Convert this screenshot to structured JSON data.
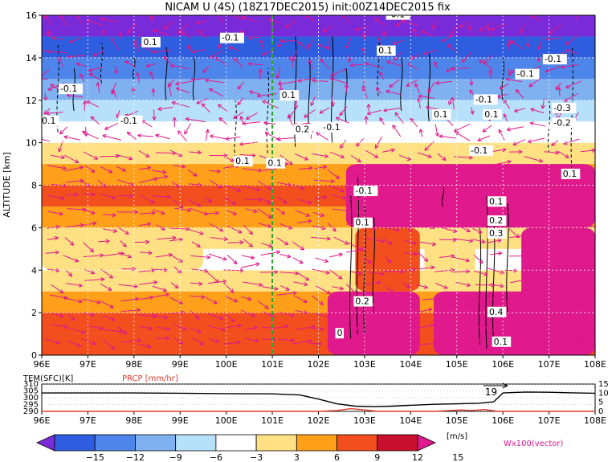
{
  "title": "NICAM U (4S) (18Z17DEC2015) init:00Z14DEC2015 fix",
  "colors": {
    "axis": "#000000",
    "vector": "#e0198c",
    "marker_line": "#2ca02c",
    "temp_line": "#000000",
    "prcp_line": "#e03a2a",
    "prcp_label": "#e03a2a"
  },
  "chart_data": [
    {
      "type": "heatmap",
      "name": "main-section",
      "ylabel": "ALTITUDE [km]",
      "xlim": [
        96,
        108
      ],
      "ylim": [
        0,
        16
      ],
      "x_ticks": [
        "96E",
        "97E",
        "98E",
        "99E",
        "100E",
        "101E",
        "102E",
        "103E",
        "104E",
        "105E",
        "106E",
        "107E",
        "108E"
      ],
      "y_ticks": [
        "0",
        "2",
        "4",
        "6",
        "8",
        "10",
        "12",
        "14",
        "16"
      ],
      "marker_longitude": 101,
      "layers": [
        {
          "z0": 0,
          "z1": 1,
          "u": 9
        },
        {
          "z0": 1,
          "z1": 2,
          "u": 10
        },
        {
          "z0": 2,
          "z1": 3,
          "u": 8
        },
        {
          "z0": 3,
          "z1": 4,
          "u": 5
        },
        {
          "z0": 4,
          "z1": 5,
          "u": 2
        },
        {
          "z0": 5,
          "z1": 6,
          "u": 4
        },
        {
          "z0": 6,
          "z1": 7,
          "u": 8
        },
        {
          "z0": 7,
          "z1": 8,
          "u": 10
        },
        {
          "z0": 8,
          "z1": 9,
          "u": 8
        },
        {
          "z0": 9,
          "z1": 10,
          "u": 5
        },
        {
          "z0": 10,
          "z1": 11,
          "u": 1
        },
        {
          "z0": 11,
          "z1": 12,
          "u": -4
        },
        {
          "z0": 12,
          "z1": 13,
          "u": -7
        },
        {
          "z0": 13,
          "z1": 14,
          "u": -10
        },
        {
          "z0": 14,
          "z1": 15,
          "u": -14
        },
        {
          "z0": 15,
          "z1": 16,
          "u": -16
        }
      ],
      "patches": [
        {
          "x0": 102.2,
          "x1": 104.2,
          "z0": 0,
          "z1": 3,
          "u": 15
        },
        {
          "x0": 102.6,
          "x1": 108,
          "z0": 6,
          "z1": 9,
          "u": 15
        },
        {
          "x0": 104.5,
          "x1": 108,
          "z0": 0,
          "z1": 3,
          "u": 15
        },
        {
          "x0": 106.4,
          "x1": 108,
          "z0": 2,
          "z1": 6,
          "u": 15
        },
        {
          "x0": 96,
          "x1": 99.5,
          "z0": 4,
          "z1": 5.5,
          "u": 5
        },
        {
          "x0": 104.3,
          "x1": 105.4,
          "z0": 3.5,
          "z1": 5.5,
          "u": 4
        },
        {
          "x0": 102.8,
          "x1": 104.2,
          "z0": 3,
          "z1": 6,
          "u": 10
        }
      ],
      "contour_labels": [
        {
          "x": 98.2,
          "z": 14.6,
          "text": "0.1"
        },
        {
          "x": 99.9,
          "z": 14.8,
          "text": "-0.1"
        },
        {
          "x": 103.5,
          "z": 15.9,
          "text": "-0.1"
        },
        {
          "x": 103.3,
          "z": 14.2,
          "text": "0.1"
        },
        {
          "x": 106.9,
          "z": 13.8,
          "text": "-0.1"
        },
        {
          "x": 106.3,
          "z": 13.1,
          "text": "-0.1"
        },
        {
          "x": 96.4,
          "z": 12.4,
          "text": "-0.1"
        },
        {
          "x": 101.2,
          "z": 12.1,
          "text": "0.1"
        },
        {
          "x": 105.4,
          "z": 11.9,
          "text": "-0.1"
        },
        {
          "x": 96.0,
          "z": 10.9,
          "text": "0.1"
        },
        {
          "x": 97.7,
          "z": 10.9,
          "text": "-0.1"
        },
        {
          "x": 101.5,
          "z": 10.5,
          "text": "0.2"
        },
        {
          "x": 102.1,
          "z": 10.6,
          "text": "-0.1"
        },
        {
          "x": 104.5,
          "z": 11.2,
          "text": "0.1"
        },
        {
          "x": 105.6,
          "z": 11.2,
          "text": "0.1"
        },
        {
          "x": 107.1,
          "z": 11.5,
          "text": "-0.3"
        },
        {
          "x": 107.1,
          "z": 10.8,
          "text": "-0.2"
        },
        {
          "x": 105.3,
          "z": 9.5,
          "text": "-0.1"
        },
        {
          "x": 100.2,
          "z": 9.0,
          "text": "0.1"
        },
        {
          "x": 100.9,
          "z": 8.9,
          "text": "0.1"
        },
        {
          "x": 107.3,
          "z": 8.4,
          "text": "0.1"
        },
        {
          "x": 102.8,
          "z": 7.6,
          "text": "-0.1"
        },
        {
          "x": 105.7,
          "z": 7.1,
          "text": "0.1"
        },
        {
          "x": 102.8,
          "z": 6.1,
          "text": "0.1"
        },
        {
          "x": 105.7,
          "z": 6.2,
          "text": "0.2"
        },
        {
          "x": 105.7,
          "z": 5.6,
          "text": "0.3"
        },
        {
          "x": 102.8,
          "z": 2.4,
          "text": "0.2"
        },
        {
          "x": 105.7,
          "z": 1.9,
          "text": "0.4"
        },
        {
          "x": 105.8,
          "z": 0.5,
          "text": "0.1"
        },
        {
          "x": 102.4,
          "z": 0.9,
          "text": "0"
        }
      ],
      "contours": [
        {
          "x": 96.35,
          "z0": 10.5,
          "z1": 14.6,
          "dashed": true
        },
        {
          "x": 96.7,
          "z0": 11.5,
          "z1": 13.5,
          "dashed": false
        },
        {
          "x": 97.3,
          "z0": 12.8,
          "z1": 14.7,
          "dashed": true
        },
        {
          "x": 98.0,
          "z0": 13.0,
          "z1": 14.0,
          "dashed": false
        },
        {
          "x": 98.7,
          "z0": 12.0,
          "z1": 14.5,
          "dashed": false
        },
        {
          "x": 99.3,
          "z0": 12.0,
          "z1": 14.0,
          "dashed": false
        },
        {
          "x": 100.2,
          "z0": 9.0,
          "z1": 12.0,
          "dashed": true
        },
        {
          "x": 100.9,
          "z0": 9.5,
          "z1": 13.5,
          "dashed": true
        },
        {
          "x": 101.5,
          "z0": 9.8,
          "z1": 15.0,
          "dashed": false
        },
        {
          "x": 101.8,
          "z0": 10.5,
          "z1": 14.0,
          "dashed": false
        },
        {
          "x": 102.3,
          "z0": 10.0,
          "z1": 15.0,
          "dashed": false
        },
        {
          "x": 102.6,
          "z0": 11.0,
          "z1": 13.5,
          "dashed": false
        },
        {
          "x": 103.3,
          "z0": 12.2,
          "z1": 15.0,
          "dashed": true
        },
        {
          "x": 103.8,
          "z0": 11.5,
          "z1": 14.0,
          "dashed": false
        },
        {
          "x": 104.4,
          "z0": 11.0,
          "z1": 14.2,
          "dashed": false
        },
        {
          "x": 106.0,
          "z0": 12.0,
          "z1": 14.0,
          "dashed": false
        },
        {
          "x": 107.0,
          "z0": 9.5,
          "z1": 12.0,
          "dashed": true
        },
        {
          "x": 107.5,
          "z0": 8.5,
          "z1": 14.5,
          "dashed": true
        },
        {
          "x": 102.7,
          "z0": 0.8,
          "z1": 7.5,
          "dashed": false
        },
        {
          "x": 102.85,
          "z0": 1.0,
          "z1": 8.5,
          "dashed": false
        },
        {
          "x": 103.0,
          "z0": 1.0,
          "z1": 7.0,
          "dashed": false
        },
        {
          "x": 103.2,
          "z0": 2.0,
          "z1": 6.5,
          "dashed": false
        },
        {
          "x": 105.5,
          "z0": 0.5,
          "z1": 6.0,
          "dashed": false
        },
        {
          "x": 105.65,
          "z0": 0.3,
          "z1": 7.5,
          "dashed": false
        },
        {
          "x": 105.8,
          "z0": 0.6,
          "z1": 6.5,
          "dashed": false
        },
        {
          "x": 106.1,
          "z0": 2.0,
          "z1": 7.2,
          "dashed": false
        },
        {
          "x": 104.7,
          "z0": 7.0,
          "z1": 8.0,
          "dashed": false
        }
      ]
    },
    {
      "type": "line",
      "name": "surface-panel",
      "left_label": "TEM(SFC)[K]",
      "right_label": "PRCP [mm/hr]",
      "xlim": [
        96,
        108
      ],
      "x_ticks": [
        "96E",
        "97E",
        "98E",
        "99E",
        "100E",
        "101E",
        "102E",
        "103E",
        "104E",
        "105E",
        "106E",
        "107E",
        "108E"
      ],
      "left_ticks": [
        "290",
        "295",
        "300",
        "305",
        "310"
      ],
      "left_range": [
        290,
        310
      ],
      "right_ticks": [
        "0",
        "5",
        "10",
        "15"
      ],
      "right_range": [
        0,
        15
      ],
      "annotation": "19",
      "annotation_x": 105.75,
      "series": [
        {
          "axis": "left",
          "x": [
            96,
            97,
            98,
            99,
            100,
            101,
            101.6,
            102,
            102.4,
            102.8,
            103.2,
            103.6,
            104,
            104.5,
            105,
            105.5,
            105.8,
            106.0,
            106.5,
            107,
            107.5,
            108
          ],
          "y": [
            303.5,
            303.5,
            303.5,
            303.3,
            303.0,
            302.8,
            302.0,
            299.0,
            295.5,
            293.8,
            293.5,
            293.8,
            294.5,
            295.2,
            295.5,
            296.0,
            297.0,
            303.5,
            304.2,
            304.0,
            303.6,
            303.3
          ]
        },
        {
          "axis": "right",
          "x": [
            96,
            102.0,
            102.4,
            102.7,
            103.0,
            103.3,
            104.5,
            104.8,
            105.1,
            105.3,
            105.6,
            105.9,
            108
          ],
          "y": [
            0,
            0,
            0.5,
            1.5,
            0.8,
            0,
            0,
            0.4,
            0.8,
            0.5,
            1.0,
            0,
            0
          ]
        }
      ]
    },
    {
      "type": "colorbar",
      "name": "colorbar",
      "levels": [
        -15,
        -12,
        -9,
        -6,
        -3,
        3,
        6,
        9,
        12,
        15
      ],
      "tick_labels": [
        "−15",
        "−12",
        "−9",
        "−6",
        "−3",
        "3",
        "6",
        "9",
        "12",
        "15"
      ],
      "colors": [
        "#7a2bd9",
        "#2e5ddf",
        "#4e85ea",
        "#7fb0f0",
        "#b7e0fa",
        "#ffffff",
        "#ffe082",
        "#ff9f1a",
        "#f24e1e",
        "#c8102e",
        "#e0198c"
      ],
      "unit": "[m/s]"
    }
  ],
  "vector_label": "Wx100(vector)"
}
